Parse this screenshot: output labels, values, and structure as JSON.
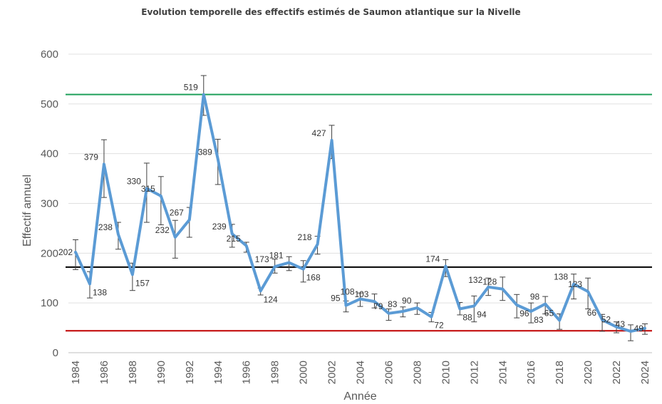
{
  "chart_data": {
    "type": "line",
    "title": "Evolution temporelle des effectifs estimés de Saumon atlantique sur la Nivelle",
    "xlabel": "Année",
    "ylabel": "Effectif annuel",
    "ylim": [
      0,
      600
    ],
    "yticks": [
      0,
      100,
      200,
      300,
      400,
      500,
      600
    ],
    "xticks": [
      1984,
      1986,
      1988,
      1990,
      1992,
      1994,
      1996,
      1998,
      2000,
      2002,
      2004,
      2006,
      2008,
      2010,
      2012,
      2014,
      2016,
      2018,
      2020,
      2022,
      2024
    ],
    "xlim": [
      1984,
      2024
    ],
    "grid": true,
    "x": [
      1984,
      1985,
      1986,
      1987,
      1988,
      1989,
      1990,
      1991,
      1992,
      1993,
      1994,
      1995,
      1996,
      1997,
      1998,
      1999,
      2000,
      2001,
      2002,
      2003,
      2004,
      2005,
      2006,
      2007,
      2008,
      2009,
      2010,
      2011,
      2012,
      2013,
      2014,
      2015,
      2016,
      2017,
      2018,
      2019,
      2020,
      2021,
      2022,
      2023,
      2024
    ],
    "series": [
      {
        "values": [
          202,
          138,
          379,
          238,
          157,
          330,
          315,
          232,
          267,
          519,
          389,
          239,
          215,
          124,
          173,
          181,
          168,
          218,
          427,
          95,
          108,
          103,
          79,
          83,
          90,
          72,
          174,
          88,
          94,
          132,
          128,
          96,
          83,
          98,
          65,
          138,
          123,
          66,
          52,
          43,
          49
        ],
        "error_low": [
          167,
          110,
          312,
          208,
          125,
          262,
          257,
          190,
          232,
          477,
          338,
          212,
          202,
          116,
          160,
          165,
          142,
          198,
          390,
          82,
          93,
          90,
          65,
          72,
          77,
          62,
          153,
          76,
          62,
          115,
          105,
          70,
          60,
          78,
          47,
          108,
          88,
          43,
          40,
          24,
          37
        ],
        "error_high": [
          227,
          163,
          428,
          262,
          180,
          381,
          354,
          266,
          292,
          557,
          429,
          258,
          222,
          130,
          188,
          193,
          185,
          234,
          457,
          104,
          120,
          118,
          88,
          92,
          100,
          81,
          187,
          101,
          114,
          150,
          152,
          117,
          100,
          113,
          78,
          158,
          150,
          77,
          62,
          56,
          58
        ]
      }
    ],
    "data_labels": [
      "202",
      "138",
      "379",
      "238",
      "157",
      "330",
      "315",
      "232",
      "267",
      "519",
      "389",
      "239",
      "215",
      "124",
      "173",
      "181",
      "168",
      "218",
      "427",
      "95",
      "108",
      "103",
      "79",
      "83",
      "90",
      "72",
      "174",
      "88",
      "94",
      "132",
      "128",
      "96",
      "83",
      "98",
      "65",
      "138",
      "123",
      "66",
      "52",
      "43",
      "49"
    ],
    "reference_lines": [
      {
        "value": 519,
        "color": "#1fa05a"
      },
      {
        "value": 172,
        "color": "#000000"
      },
      {
        "value": 44,
        "color": "#c00000"
      }
    ],
    "series_color": "#5b9bd5"
  }
}
